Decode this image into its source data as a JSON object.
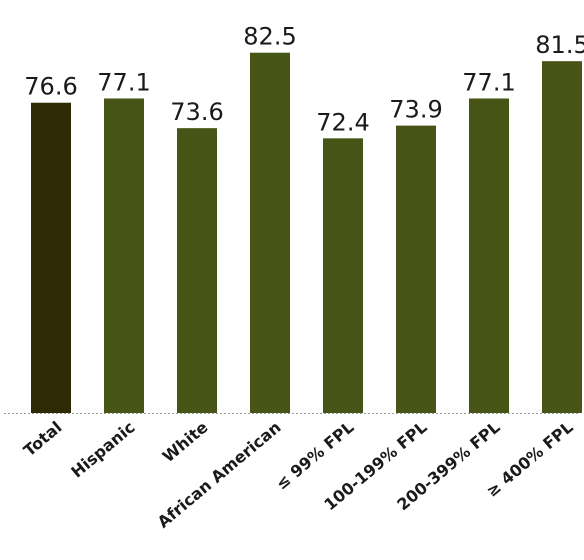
{
  "chart_data": {
    "type": "bar",
    "title": "",
    "xlabel": "",
    "ylabel": "",
    "categories": [
      "Total",
      "Hispanic",
      "White",
      "African American",
      "≤ 99% FPL",
      "100-199% FPL",
      "200-399% FPL",
      "≥ 400% FPL"
    ],
    "values": [
      76.6,
      77.1,
      73.6,
      82.5,
      72.4,
      73.9,
      77.1,
      81.5
    ],
    "value_labels": [
      "76.6",
      "77.1",
      "73.6",
      "82.5",
      "72.4",
      "73.9",
      "77.1",
      "81.5"
    ],
    "ylim": [
      40,
      84
    ],
    "grid": false,
    "legend": "none",
    "colors": {
      "highlight": "#2e2a04",
      "bar": "#465415",
      "baseline": "#9a9a9a"
    },
    "highlight_index": 0
  }
}
